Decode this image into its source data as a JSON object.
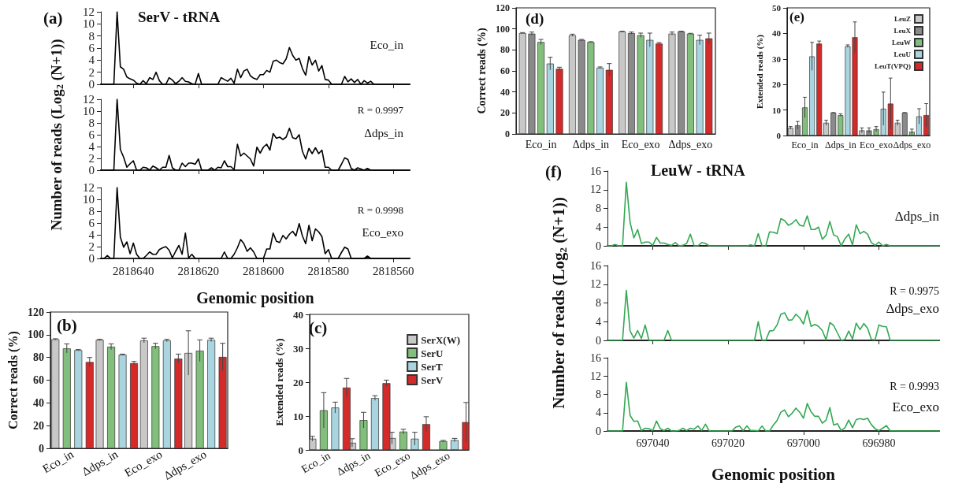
{
  "chart_data": [
    {
      "type": "line",
      "title": "SerV - tRNA",
      "annotations": [
        "(a)",
        "Eco_in"
      ],
      "xlim": [
        2818650,
        2818555
      ],
      "xticks": [
        2818640,
        2818620,
        2818600,
        2818580,
        2818560
      ],
      "ylim": [
        0,
        12
      ],
      "yticks": [
        0,
        2,
        4,
        6,
        8,
        10,
        12
      ],
      "tick_labels": "y",
      "marker": "none",
      "line_style": "solid",
      "x": [
        2818650,
        2818646,
        2818645,
        2818644,
        2818643,
        2818642,
        2818641,
        2818640,
        2818639,
        2818638,
        2818637,
        2818636,
        2818635,
        2818634,
        2818633,
        2818632,
        2818631,
        2818630,
        2818629,
        2818628,
        2818627,
        2818626,
        2818625,
        2818624,
        2818623,
        2818622,
        2818621,
        2818620,
        2818619,
        2818614,
        2818613,
        2818612,
        2818611,
        2818610,
        2818609,
        2818608,
        2818607,
        2818606,
        2818605,
        2818604,
        2818603,
        2818602,
        2818601,
        2818600,
        2818599,
        2818598,
        2818597,
        2818596,
        2818595,
        2818594,
        2818593,
        2818592,
        2818591,
        2818590,
        2818589,
        2818588,
        2818587,
        2818586,
        2818585,
        2818584,
        2818583,
        2818582,
        2818581,
        2818580,
        2818579,
        2818576,
        2818575,
        2818574,
        2818573,
        2818572,
        2818571,
        2818570,
        2818569,
        2818568,
        2818567,
        2818566,
        2818555
      ],
      "series": [
        {
          "color": "#000000",
          "values": [
            0,
            0,
            12,
            2.9,
            2.5,
            1.2,
            0.9,
            0.7,
            0.2,
            0,
            0.6,
            0.1,
            1.1,
            0.8,
            2,
            0.6,
            0,
            0,
            1.1,
            0.7,
            0.1,
            0.5,
            1.1,
            0.5,
            0.4,
            0.1,
            0,
            1.8,
            0,
            0,
            1.1,
            0.8,
            0.5,
            1.0,
            0.2,
            2.5,
            1.1,
            2.2,
            2.5,
            1.4,
            1.0,
            0.8,
            1.6,
            1.6,
            2.3,
            2.0,
            3.8,
            4.0,
            3.6,
            3.4,
            4.2,
            6.1,
            4.8,
            4.0,
            4.3,
            2.6,
            1.5,
            4.6,
            3.2,
            4.0,
            2.2,
            3.1,
            0.8,
            0.7,
            0,
            0,
            1.3,
            0.4,
            0.9,
            0.3,
            0.8,
            0,
            0.6,
            0.2,
            0.5,
            0,
            0
          ]
        }
      ]
    },
    {
      "type": "line",
      "ylabel": "Number of reads (Log$_{2}$ (N+1))",
      "annotations": [
        "R = 0.9997",
        "Δdps_in"
      ],
      "xlim": [
        2818650,
        2818555
      ],
      "xticks": [
        2818640,
        2818620,
        2818600,
        2818580,
        2818560
      ],
      "ylim": [
        0,
        12
      ],
      "yticks": [
        0,
        2,
        4,
        6,
        8,
        10,
        12
      ],
      "tick_labels": "y",
      "marker": "none",
      "line_style": "solid",
      "x": [
        2818650,
        2818646,
        2818645,
        2818644,
        2818643,
        2818642,
        2818641,
        2818640,
        2818639,
        2818638,
        2818637,
        2818636,
        2818635,
        2818634,
        2818633,
        2818632,
        2818631,
        2818630,
        2818629,
        2818628,
        2818627,
        2818626,
        2818625,
        2818624,
        2818623,
        2818622,
        2818621,
        2818620,
        2818619,
        2818618,
        2818617,
        2818616,
        2818615,
        2818614,
        2818613,
        2818612,
        2818611,
        2818610,
        2818609,
        2818608,
        2818607,
        2818606,
        2818605,
        2818604,
        2818603,
        2818602,
        2818601,
        2818600,
        2818599,
        2818598,
        2818597,
        2818596,
        2818595,
        2818594,
        2818593,
        2818592,
        2818591,
        2818590,
        2818589,
        2818588,
        2818587,
        2818586,
        2818585,
        2818584,
        2818583,
        2818582,
        2818581,
        2818580,
        2818579,
        2818577,
        2818576,
        2818575,
        2818574,
        2818573,
        2818572,
        2818571,
        2818570,
        2818569,
        2818568,
        2818567,
        2818555
      ],
      "series": [
        {
          "color": "#000000",
          "values": [
            0,
            0,
            12,
            3.5,
            2.2,
            0.5,
            1.1,
            1.6,
            0,
            0,
            0.5,
            0.4,
            0,
            0.7,
            0.4,
            0,
            0.5,
            0.5,
            2.5,
            0.4,
            0,
            0,
            1.2,
            0.6,
            1.2,
            1.2,
            1.0,
            1.9,
            0,
            0,
            0,
            0.4,
            0,
            0.5,
            0.4,
            1.6,
            0.6,
            0.6,
            0.1,
            4.4,
            2.4,
            2.9,
            2.4,
            1.9,
            0.7,
            3.9,
            2.9,
            3.9,
            4.4,
            3.4,
            6.2,
            5.4,
            5.6,
            5.2,
            5.6,
            7.1,
            5.5,
            5.3,
            6.0,
            3.2,
            1.9,
            3.7,
            2.8,
            3.8,
            2.8,
            3.4,
            0.5,
            0.5,
            0,
            0,
            1.0,
            2.1,
            1.8,
            0.3,
            0,
            0.4,
            0.2,
            0,
            0.3,
            0,
            0
          ]
        }
      ]
    },
    {
      "type": "line",
      "xlabel": "Genomic position",
      "annotations": [
        "R = 0.9998",
        "Eco_exo"
      ],
      "xlim": [
        2818650,
        2818555
      ],
      "xticks": [
        2818640,
        2818620,
        2818600,
        2818580,
        2818560
      ],
      "ylim": [
        0,
        12
      ],
      "yticks": [
        0,
        2,
        4,
        6,
        8,
        10,
        12
      ],
      "marker": "none",
      "line_style": "solid",
      "x": [
        2818650,
        2818649,
        2818648,
        2818647,
        2818646,
        2818645,
        2818644,
        2818643,
        2818642,
        2818641,
        2818640,
        2818639,
        2818638,
        2818637,
        2818636,
        2818635,
        2818634,
        2818633,
        2818632,
        2818631,
        2818630,
        2818629,
        2818628,
        2818627,
        2818626,
        2818625,
        2818624,
        2818623,
        2818622,
        2818621,
        2818613,
        2818612,
        2818611,
        2818610,
        2818609,
        2818608,
        2818607,
        2818606,
        2818605,
        2818604,
        2818603,
        2818602,
        2818601,
        2818600,
        2818599,
        2818598,
        2818597,
        2818596,
        2818595,
        2818594,
        2818593,
        2818592,
        2818591,
        2818590,
        2818589,
        2818588,
        2818587,
        2818586,
        2818585,
        2818584,
        2818583,
        2818582,
        2818581,
        2818580,
        2818579,
        2818577,
        2818576,
        2818575,
        2818574,
        2818573,
        2818569,
        2818568,
        2818567,
        2818555
      ],
      "series": [
        {
          "color": "#000000",
          "values": [
            0,
            0,
            0.5,
            0,
            0,
            12,
            3.6,
            1.9,
            2.8,
            0.8,
            2.6,
            0.7,
            0,
            0,
            0.5,
            1.1,
            0.7,
            0.7,
            1.5,
            1.8,
            2.0,
            1.4,
            0.1,
            1.2,
            2.2,
            0.7,
            4.3,
            0.1,
            0.7,
            0,
            0,
            1.1,
            0,
            0,
            0.7,
            1.8,
            3.2,
            2.5,
            1.2,
            1.8,
            1.1,
            0,
            0,
            0,
            1.6,
            1.6,
            4.3,
            2.9,
            2.7,
            3.9,
            3.3,
            4.1,
            4.6,
            3.8,
            5.9,
            3.8,
            2.5,
            5.6,
            3.0,
            5.0,
            4.5,
            3.7,
            0.8,
            1.5,
            0,
            0,
            1.0,
            1.9,
            1.6,
            0,
            0,
            0.4,
            0,
            0
          ]
        }
      ]
    },
    {
      "type": "bar",
      "ylabel": "Correct reads (%)",
      "annotations": [
        "(b)"
      ],
      "categories": [
        "Eco_in",
        "Δdps_in",
        "Eco_exo",
        "Δdps_exo"
      ],
      "ylim": [
        0,
        120
      ],
      "yticks": [
        0,
        20,
        40,
        60,
        80,
        100,
        120
      ],
      "series": [
        {
          "color": "#c8c8c8",
          "values": [
            96,
            95.5,
            95,
            84
          ],
          "errors": [
            0.5,
            0.5,
            2,
            19.5
          ]
        },
        {
          "color": "#82bf7c",
          "values": [
            88,
            89.5,
            90,
            86
          ],
          "errors": [
            4,
            2.5,
            2.5,
            9.5
          ]
        },
        {
          "color": "#a8d5df",
          "values": [
            86.5,
            82.5,
            95,
            95.5
          ],
          "errors": [
            0.5,
            0.5,
            1,
            1.5
          ]
        },
        {
          "color": "#d42a2a",
          "values": [
            76,
            75,
            79,
            80.5
          ],
          "errors": [
            4,
            1.5,
            4,
            12
          ]
        }
      ]
    },
    {
      "type": "bar",
      "ylabel": "Extended reads (%)",
      "annotations": [
        "(c)"
      ],
      "categories": [
        "Eco_in",
        "Δdps_in",
        "Eco_exo",
        "Δdps_exo"
      ],
      "ylim": [
        0,
        40
      ],
      "yticks": [
        0,
        10,
        20,
        30,
        40
      ],
      "legend": "top right",
      "series": [
        {
          "name": "SerX(W)",
          "color": "#c8c8c8",
          "values": [
            3.3,
            2.1,
            3.5,
            null
          ],
          "errors": [
            0.7,
            1.2,
            1.7,
            null
          ]
        },
        {
          "name": "SerU",
          "color": "#82bf7c",
          "values": [
            11.7,
            8.8,
            5.4,
            2.6
          ],
          "errors": [
            5.2,
            2.3,
            0.7,
            0.2
          ]
        },
        {
          "name": "SerT",
          "color": "#a8d5df",
          "values": [
            12.5,
            15.3,
            3.3,
            2.9
          ],
          "errors": [
            1.6,
            0.7,
            1.9,
            0.5
          ]
        },
        {
          "name": "SerV",
          "color": "#d42a2a",
          "values": [
            18.4,
            19.7,
            7.6,
            8.2
          ],
          "errors": [
            2.7,
            0.9,
            2.2,
            5.8
          ]
        }
      ]
    },
    {
      "type": "bar",
      "ylabel": "Correct reads (%)",
      "annotations": [
        "(d)"
      ],
      "categories": [
        "Eco_in",
        "Δdps_in",
        "Eco_exo",
        "Δdps_exo"
      ],
      "ylim": [
        0,
        120
      ],
      "yticks": [
        0,
        20,
        40,
        60,
        80,
        100,
        120
      ],
      "series": [
        {
          "color": "#c8c8c8",
          "values": [
            96,
            94,
            97.5,
            95.5
          ],
          "errors": [
            0.5,
            1,
            0.3,
            1.5
          ]
        },
        {
          "color": "#8a8a8a",
          "values": [
            95.5,
            89.5,
            96,
            97.5
          ],
          "errors": [
            1.5,
            0.5,
            1,
            0.3
          ]
        },
        {
          "color": "#82bf7c",
          "values": [
            87.5,
            87.5,
            94,
            95.5
          ],
          "errors": [
            2.5,
            0.3,
            2,
            0.3
          ]
        },
        {
          "color": "#a8d5df",
          "values": [
            67,
            63,
            89.5,
            89.5
          ],
          "errors": [
            6,
            0.8,
            6.5,
            4.5
          ]
        },
        {
          "color": "#d42a2a",
          "values": [
            62,
            61,
            86,
            91
          ],
          "errors": [
            1.5,
            6,
            1,
            5
          ]
        }
      ]
    },
    {
      "type": "bar",
      "ylabel": "Extended reads (%)",
      "annotations": [
        "(e)"
      ],
      "categories": [
        "Eco_in",
        "Δdps_in",
        "Eco_exo",
        "Δdps_exo"
      ],
      "ylim": [
        0,
        50
      ],
      "yticks": [
        0,
        10,
        20,
        30,
        40,
        50
      ],
      "legend": "top right",
      "series": [
        {
          "name": "LeuZ",
          "color": "#c8c8c8",
          "values": [
            3,
            5,
            2,
            5
          ],
          "errors": [
            0.5,
            1,
            1,
            1
          ]
        },
        {
          "name": "LeuX",
          "color": "#8a8a8a",
          "values": [
            4,
            9,
            2,
            9
          ],
          "errors": [
            1.5,
            0,
            1,
            0
          ]
        },
        {
          "name": "LeuW",
          "color": "#82bf7c",
          "values": [
            11,
            8,
            2.5,
            1.5
          ],
          "errors": [
            4,
            0.5,
            1,
            1
          ]
        },
        {
          "name": "LeuU",
          "color": "#a8d5df",
          "values": [
            31,
            35,
            10.5,
            7.5
          ],
          "errors": [
            5.5,
            0.5,
            6.5,
            3
          ]
        },
        {
          "name": "LeuT(VPQ)",
          "color": "#d42a2a",
          "values": [
            36,
            38.5,
            12.5,
            8
          ],
          "errors": [
            1,
            6,
            10,
            4.5
          ]
        }
      ]
    },
    {
      "type": "line",
      "title": "LeuW - tRNA",
      "annotations": [
        "(f)",
        "Δdps_in"
      ],
      "xlim": [
        697052,
        696964
      ],
      "xticks": [
        697040,
        697020,
        697000,
        696980
      ],
      "ylim": [
        0,
        16
      ],
      "yticks": [
        0,
        4,
        8,
        12,
        16
      ],
      "tick_labels": "y",
      "marker": "none",
      "line_style": "solid",
      "x": [
        697052,
        697051,
        697050,
        697049,
        697048,
        697047,
        697046,
        697045,
        697044,
        697043,
        697042,
        697041,
        697040,
        697039,
        697038,
        697037,
        697036,
        697035,
        697034,
        697033,
        697032,
        697031,
        697030,
        697029,
        697028,
        697027,
        697026,
        697025,
        697015,
        697014,
        697013,
        697012,
        697011,
        697010,
        697009,
        697008,
        697007,
        697006,
        697005,
        697004,
        697003,
        697002,
        697001,
        697000,
        696999,
        696998,
        696997,
        696996,
        696995,
        696994,
        696993,
        696992,
        696991,
        696990,
        696989,
        696988,
        696987,
        696986,
        696985,
        696984,
        696983,
        696982,
        696981,
        696980,
        696979,
        696978,
        696977,
        696964
      ],
      "series": [
        {
          "color": "#33a852",
          "values": [
            0,
            0,
            0.3,
            0,
            0,
            13.6,
            5,
            1.7,
            3.5,
            0.5,
            0.8,
            0.8,
            0.1,
            1.8,
            0.6,
            0.6,
            0.3,
            0.1,
            0.7,
            0,
            0.1,
            0.5,
            2.5,
            0,
            0,
            0.7,
            0.5,
            0,
            0,
            0.2,
            0,
            2.6,
            0,
            0,
            3.0,
            2.9,
            2.6,
            5.8,
            5.4,
            4.4,
            4.8,
            5.6,
            4.4,
            4.2,
            6.4,
            3.5,
            3.5,
            4.0,
            1.4,
            2.3,
            5.2,
            2.3,
            2.0,
            0,
            1.5,
            2.5,
            0.2,
            4.5,
            2.6,
            3.1,
            2.5,
            0.7,
            0.1,
            0.8,
            0,
            0.3,
            0,
            0
          ]
        }
      ]
    },
    {
      "type": "line",
      "ylabel": "Number of reads (Log$_{2}$ (N+1))",
      "annotations": [
        "R = 0.9975",
        "Δdps_exo"
      ],
      "xlim": [
        697052,
        696964
      ],
      "xticks": [
        697040,
        697020,
        697000,
        696980
      ],
      "ylim": [
        0,
        16
      ],
      "yticks": [
        0,
        4,
        8,
        12,
        16
      ],
      "tick_labels": "y",
      "marker": "none",
      "line_style": "solid",
      "x": [
        697052,
        697048,
        697047,
        697046,
        697045,
        697044,
        697043,
        697042,
        697041,
        697037,
        697036,
        697035,
        697013,
        697012,
        697011,
        697010,
        697009,
        697008,
        697007,
        697006,
        697005,
        697004,
        697003,
        697002,
        697001,
        697000,
        696999,
        696998,
        696997,
        696996,
        696995,
        696994,
        696993,
        696992,
        696991,
        696990,
        696989,
        696988,
        696987,
        696986,
        696985,
        696984,
        696983,
        696982,
        696981,
        696980,
        696979,
        696978,
        696977,
        696964
      ],
      "series": [
        {
          "color": "#33a852",
          "values": [
            0,
            0,
            10.7,
            2,
            0.5,
            2.1,
            0.4,
            3.3,
            0,
            0,
            2.1,
            0,
            0,
            4.0,
            0,
            0,
            2.0,
            2.1,
            3.3,
            5.6,
            5.9,
            4.3,
            4.4,
            5.6,
            4.8,
            3.5,
            6.4,
            3.0,
            3.4,
            3.0,
            2.1,
            0.1,
            3.8,
            3.2,
            1.6,
            0,
            0.2,
            2.0,
            0.3,
            3.7,
            2.3,
            3.6,
            2.6,
            0.2,
            0.1,
            3.3,
            3.0,
            2.9,
            0,
            0
          ]
        }
      ]
    },
    {
      "type": "line",
      "xlabel": "Genomic position",
      "annotations": [
        "R = 0.9993",
        "Eco_exo"
      ],
      "xlim": [
        697052,
        696964
      ],
      "xticks": [
        697040,
        697020,
        697000,
        696980
      ],
      "ylim": [
        0,
        16
      ],
      "yticks": [
        0,
        4,
        8,
        12,
        16
      ],
      "marker": "none",
      "line_style": "solid",
      "x": [
        697052,
        697048,
        697047,
        697046,
        697045,
        697044,
        697043,
        697042,
        697041,
        697040,
        697039,
        697038,
        697037,
        697036,
        697035,
        697034,
        697033,
        697032,
        697031,
        697030,
        697029,
        697028,
        697027,
        697026,
        697025,
        697019,
        697018,
        697017,
        697016,
        697015,
        697014,
        697013,
        697012,
        697011,
        697010,
        697009,
        697008,
        697007,
        697006,
        697005,
        697004,
        697003,
        697002,
        697001,
        697000,
        696999,
        696998,
        696997,
        696996,
        696995,
        696994,
        696993,
        696992,
        696991,
        696990,
        696989,
        696988,
        696987,
        696986,
        696985,
        696984,
        696983,
        696982,
        696981,
        696980,
        696979,
        696978,
        696977,
        696964
      ],
      "series": [
        {
          "color": "#33a852",
          "values": [
            0,
            0,
            10.6,
            3.4,
            2.1,
            2.2,
            0.1,
            0.6,
            0.5,
            0.1,
            2.2,
            0.5,
            0.1,
            0.6,
            0,
            0,
            0.1,
            0.6,
            0.1,
            0.6,
            0.4,
            1.1,
            0.1,
            1.5,
            0,
            0,
            0.8,
            1.1,
            0.1,
            1.1,
            0.1,
            0.1,
            0,
            1.1,
            0,
            0,
            1.3,
            2.3,
            4.1,
            4.6,
            3.1,
            3.9,
            5.0,
            4.1,
            2.8,
            6.0,
            4.2,
            3.2,
            3.2,
            1.7,
            2.4,
            5.1,
            1.3,
            1.6,
            0.1,
            0.7,
            2.4,
            0.7,
            2.5,
            2.7,
            2.5,
            2.8,
            1.4,
            0.5,
            0.1,
            0.6,
            1.2,
            0,
            0
          ]
        }
      ]
    }
  ]
}
